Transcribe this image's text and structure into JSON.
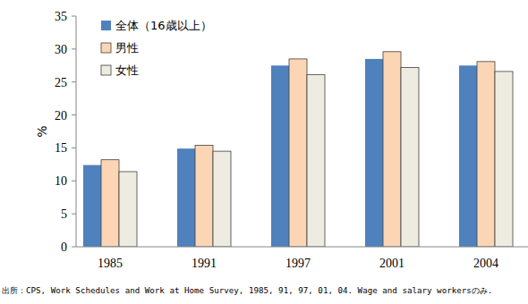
{
  "chart_data": {
    "type": "bar",
    "categories": [
      "1985",
      "1991",
      "1997",
      "2001",
      "2004"
    ],
    "series": [
      {
        "name": "全体（16歳以上）",
        "color": "#4f81bd",
        "values": [
          12.4,
          14.9,
          27.5,
          28.5,
          27.5
        ]
      },
      {
        "name": "男性",
        "color": "#fcd5b5",
        "values": [
          13.2,
          15.4,
          28.5,
          29.6,
          28.1
        ]
      },
      {
        "name": "女性",
        "color": "#eeece1",
        "values": [
          11.4,
          14.5,
          26.1,
          27.2,
          26.6
        ]
      }
    ],
    "y_label": "%",
    "ylim": [
      0,
      35
    ],
    "yticks": [
      0,
      5,
      10,
      15,
      20,
      25,
      30,
      35
    ],
    "grid": false,
    "legend": "top-left",
    "note": "出所：CPS, Work Schedules and Work at Home Survey, 1985, 91, 97, 01, 04. Wage and salary workersのみ."
  }
}
